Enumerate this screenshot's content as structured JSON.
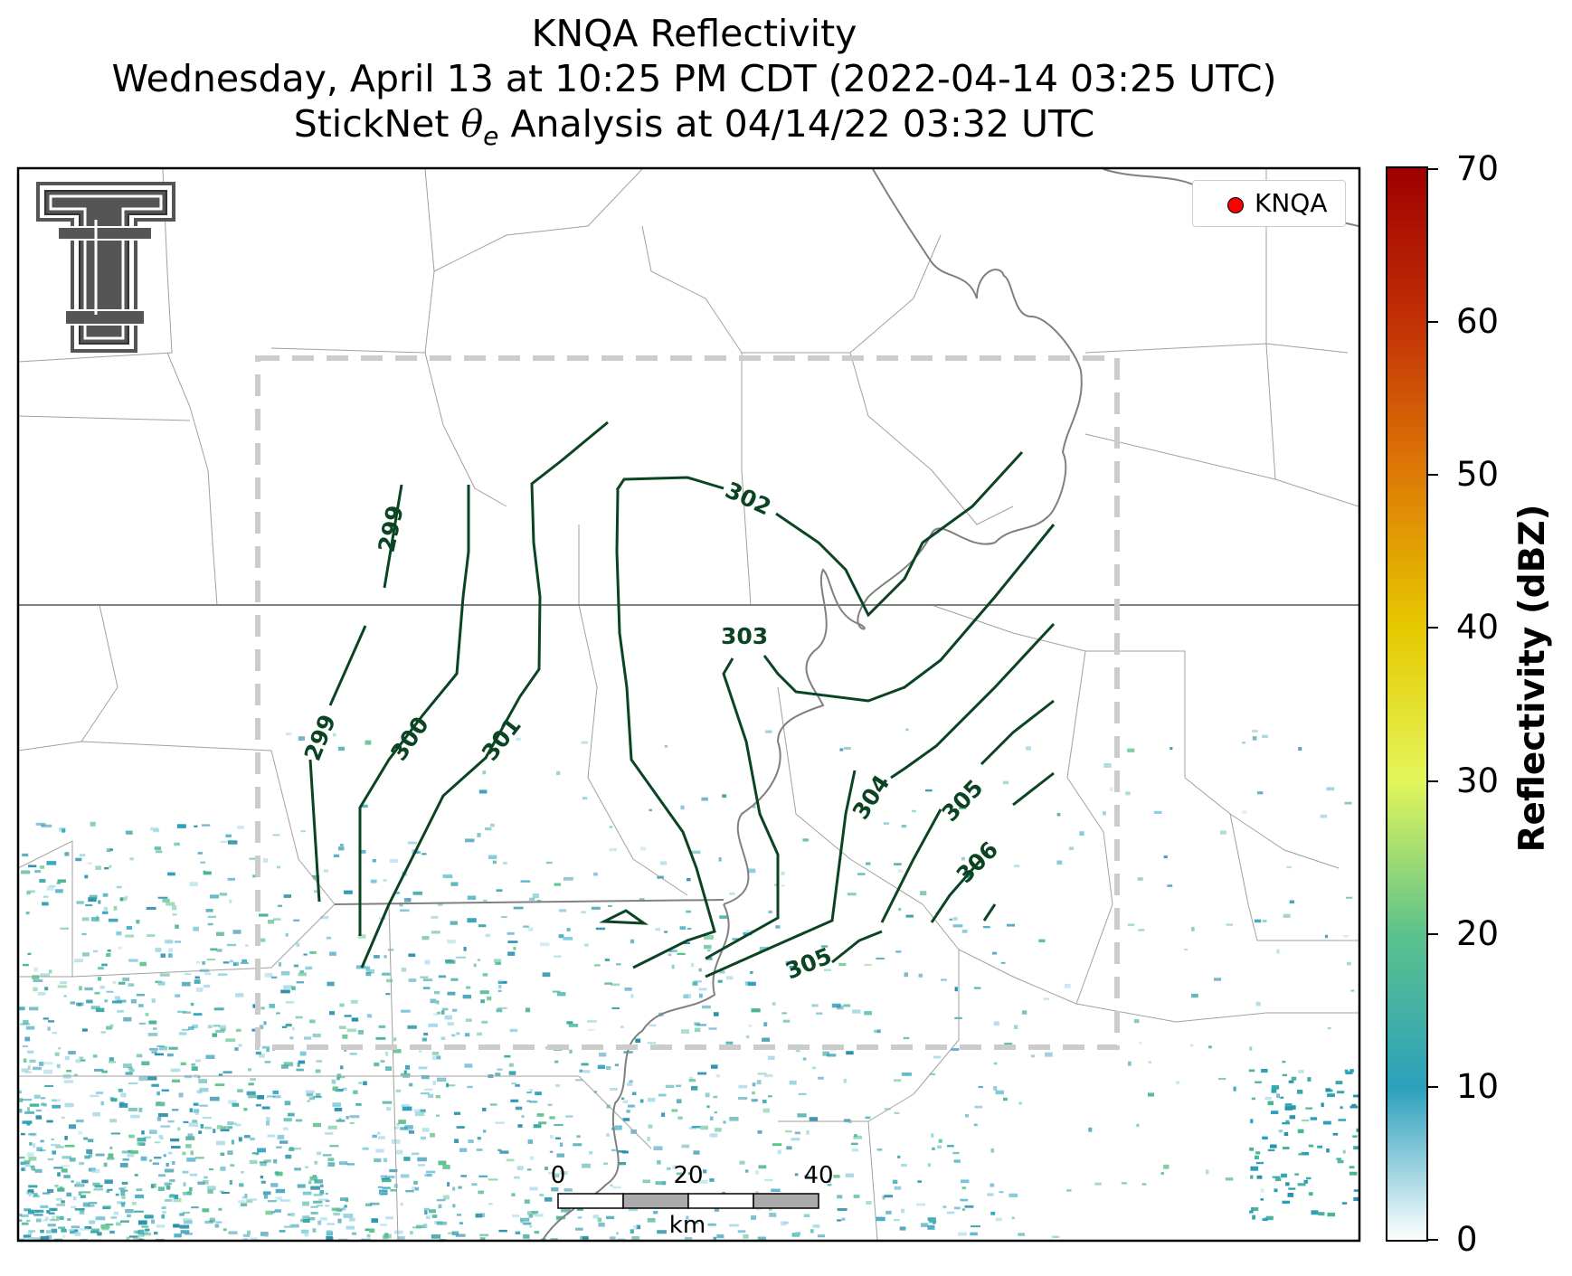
{
  "title": {
    "line1": "KNQA Reflectivity",
    "line2": "Wednesday, April 13 at 10:25 PM CDT (2022-04-14 03:25 UTC)",
    "line3_prefix": "StickNet ",
    "line3_symbol": "θ",
    "line3_subscript": "e",
    "line3_suffix": " Analysis at 04/14/22 03:32 UTC"
  },
  "legend": {
    "label": "KNQA",
    "marker_color": "#ff0000"
  },
  "colorbar": {
    "label": "Reflectivity (dBZ)",
    "ticks": [
      "0",
      "10",
      "20",
      "30",
      "40",
      "50",
      "60",
      "70"
    ],
    "min": 0,
    "max": 70,
    "colors": [
      "#ffffff",
      "#2ba0bc",
      "#5cc28c",
      "#e3f55a",
      "#e6c900",
      "#de7b05",
      "#c23006",
      "#9e0000"
    ]
  },
  "contours": {
    "color": "#0b4423",
    "labels": [
      "299",
      "299",
      "300",
      "301",
      "302",
      "303",
      "304",
      "305",
      "305",
      "306"
    ]
  },
  "scale_bar": {
    "labels": [
      "0",
      "20",
      "40"
    ],
    "unit": "km"
  },
  "colors": {
    "analysis_box": "#cccccc",
    "state_border": "#808080",
    "county_border": "#a0a0a0"
  },
  "icons": [
    "texas-tech-logo-icon",
    "radar-site-marker-icon"
  ]
}
